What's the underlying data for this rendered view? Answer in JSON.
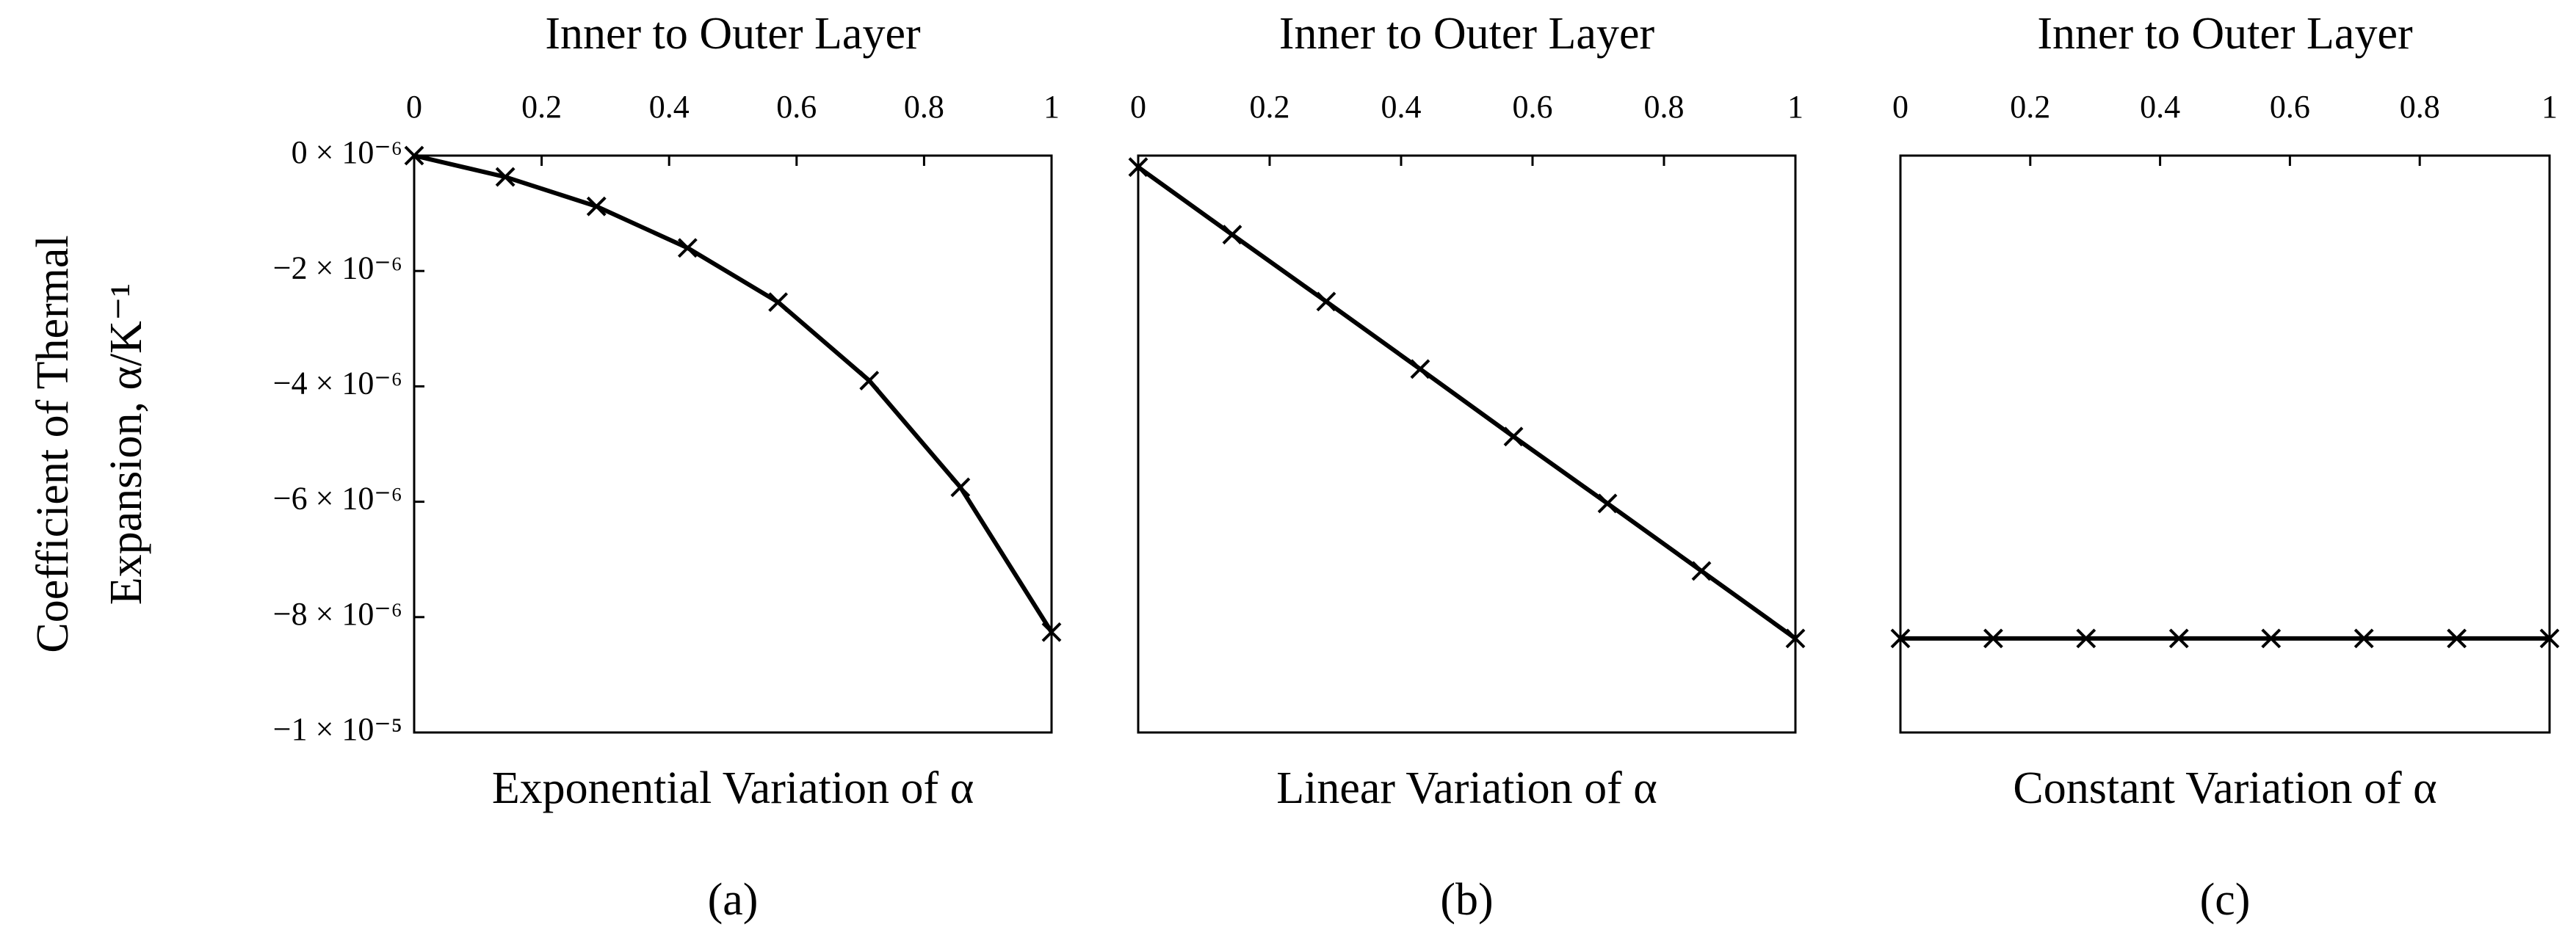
{
  "chart_data": [
    {
      "type": "line",
      "x_label": "Inner to Outer Layer",
      "title": "Exponential Variation of α",
      "caption": "(a)",
      "y_label": [
        "Coefficient of Thermal",
        "Expansion, α/K⁻¹"
      ],
      "x": [
        0,
        0.143,
        0.286,
        0.429,
        0.571,
        0.714,
        0.857,
        1
      ],
      "series": [
        {
          "color": "#000000",
          "values": [
            0,
            -3.7e-07,
            -8.8e-07,
            -1.6e-06,
            -2.54e-06,
            -3.9e-06,
            -5.75e-06,
            -8.26e-06
          ]
        }
      ],
      "xlim": [
        0,
        1
      ],
      "xticks": [
        0,
        0.2,
        0.4,
        0.6,
        0.8,
        1
      ],
      "ylim": [
        -1e-05,
        0
      ],
      "yticks": [
        {
          "value": 0,
          "label": "0 × 10⁻⁶"
        },
        {
          "value": -2e-06,
          "label": "−2 × 10⁻⁶"
        },
        {
          "value": -4e-06,
          "label": "−4 × 10⁻⁶"
        },
        {
          "value": -6e-06,
          "label": "−6 × 10⁻⁶"
        },
        {
          "value": -8e-06,
          "label": "−8 × 10⁻⁶"
        },
        {
          "value": -1e-05,
          "label": "−1 × 10⁻⁵"
        }
      ],
      "grid": false
    },
    {
      "type": "line",
      "x_label": "Inner to Outer Layer",
      "title": "Linear Variation of α",
      "caption": "(b)",
      "x": [
        0,
        0.143,
        0.286,
        0.429,
        0.571,
        0.714,
        0.857,
        1
      ],
      "series": [
        {
          "color": "#000000",
          "values": [
            -2e-07,
            -1.37e-06,
            -2.53e-06,
            -3.7e-06,
            -4.87e-06,
            -6.03e-06,
            -7.2e-06,
            -8.37e-06
          ]
        }
      ],
      "xlim": [
        0,
        1
      ],
      "xticks": [
        0,
        0.2,
        0.4,
        0.6,
        0.8,
        1
      ],
      "ylim": [
        -1e-05,
        0
      ],
      "grid": false
    },
    {
      "type": "line",
      "x_label": "Inner to Outer Layer",
      "title": "Constant Variation of α",
      "caption": "(c)",
      "x": [
        0,
        0.143,
        0.286,
        0.429,
        0.571,
        0.714,
        0.857,
        1
      ],
      "series": [
        {
          "color": "#000000",
          "values": [
            -8.37e-06,
            -8.37e-06,
            -8.37e-06,
            -8.37e-06,
            -8.37e-06,
            -8.37e-06,
            -8.37e-06,
            -8.37e-06
          ]
        }
      ],
      "xlim": [
        0,
        1
      ],
      "xticks": [
        0,
        0.2,
        0.4,
        0.6,
        0.8,
        1
      ],
      "ylim": [
        -1e-05,
        0
      ],
      "grid": false
    }
  ]
}
